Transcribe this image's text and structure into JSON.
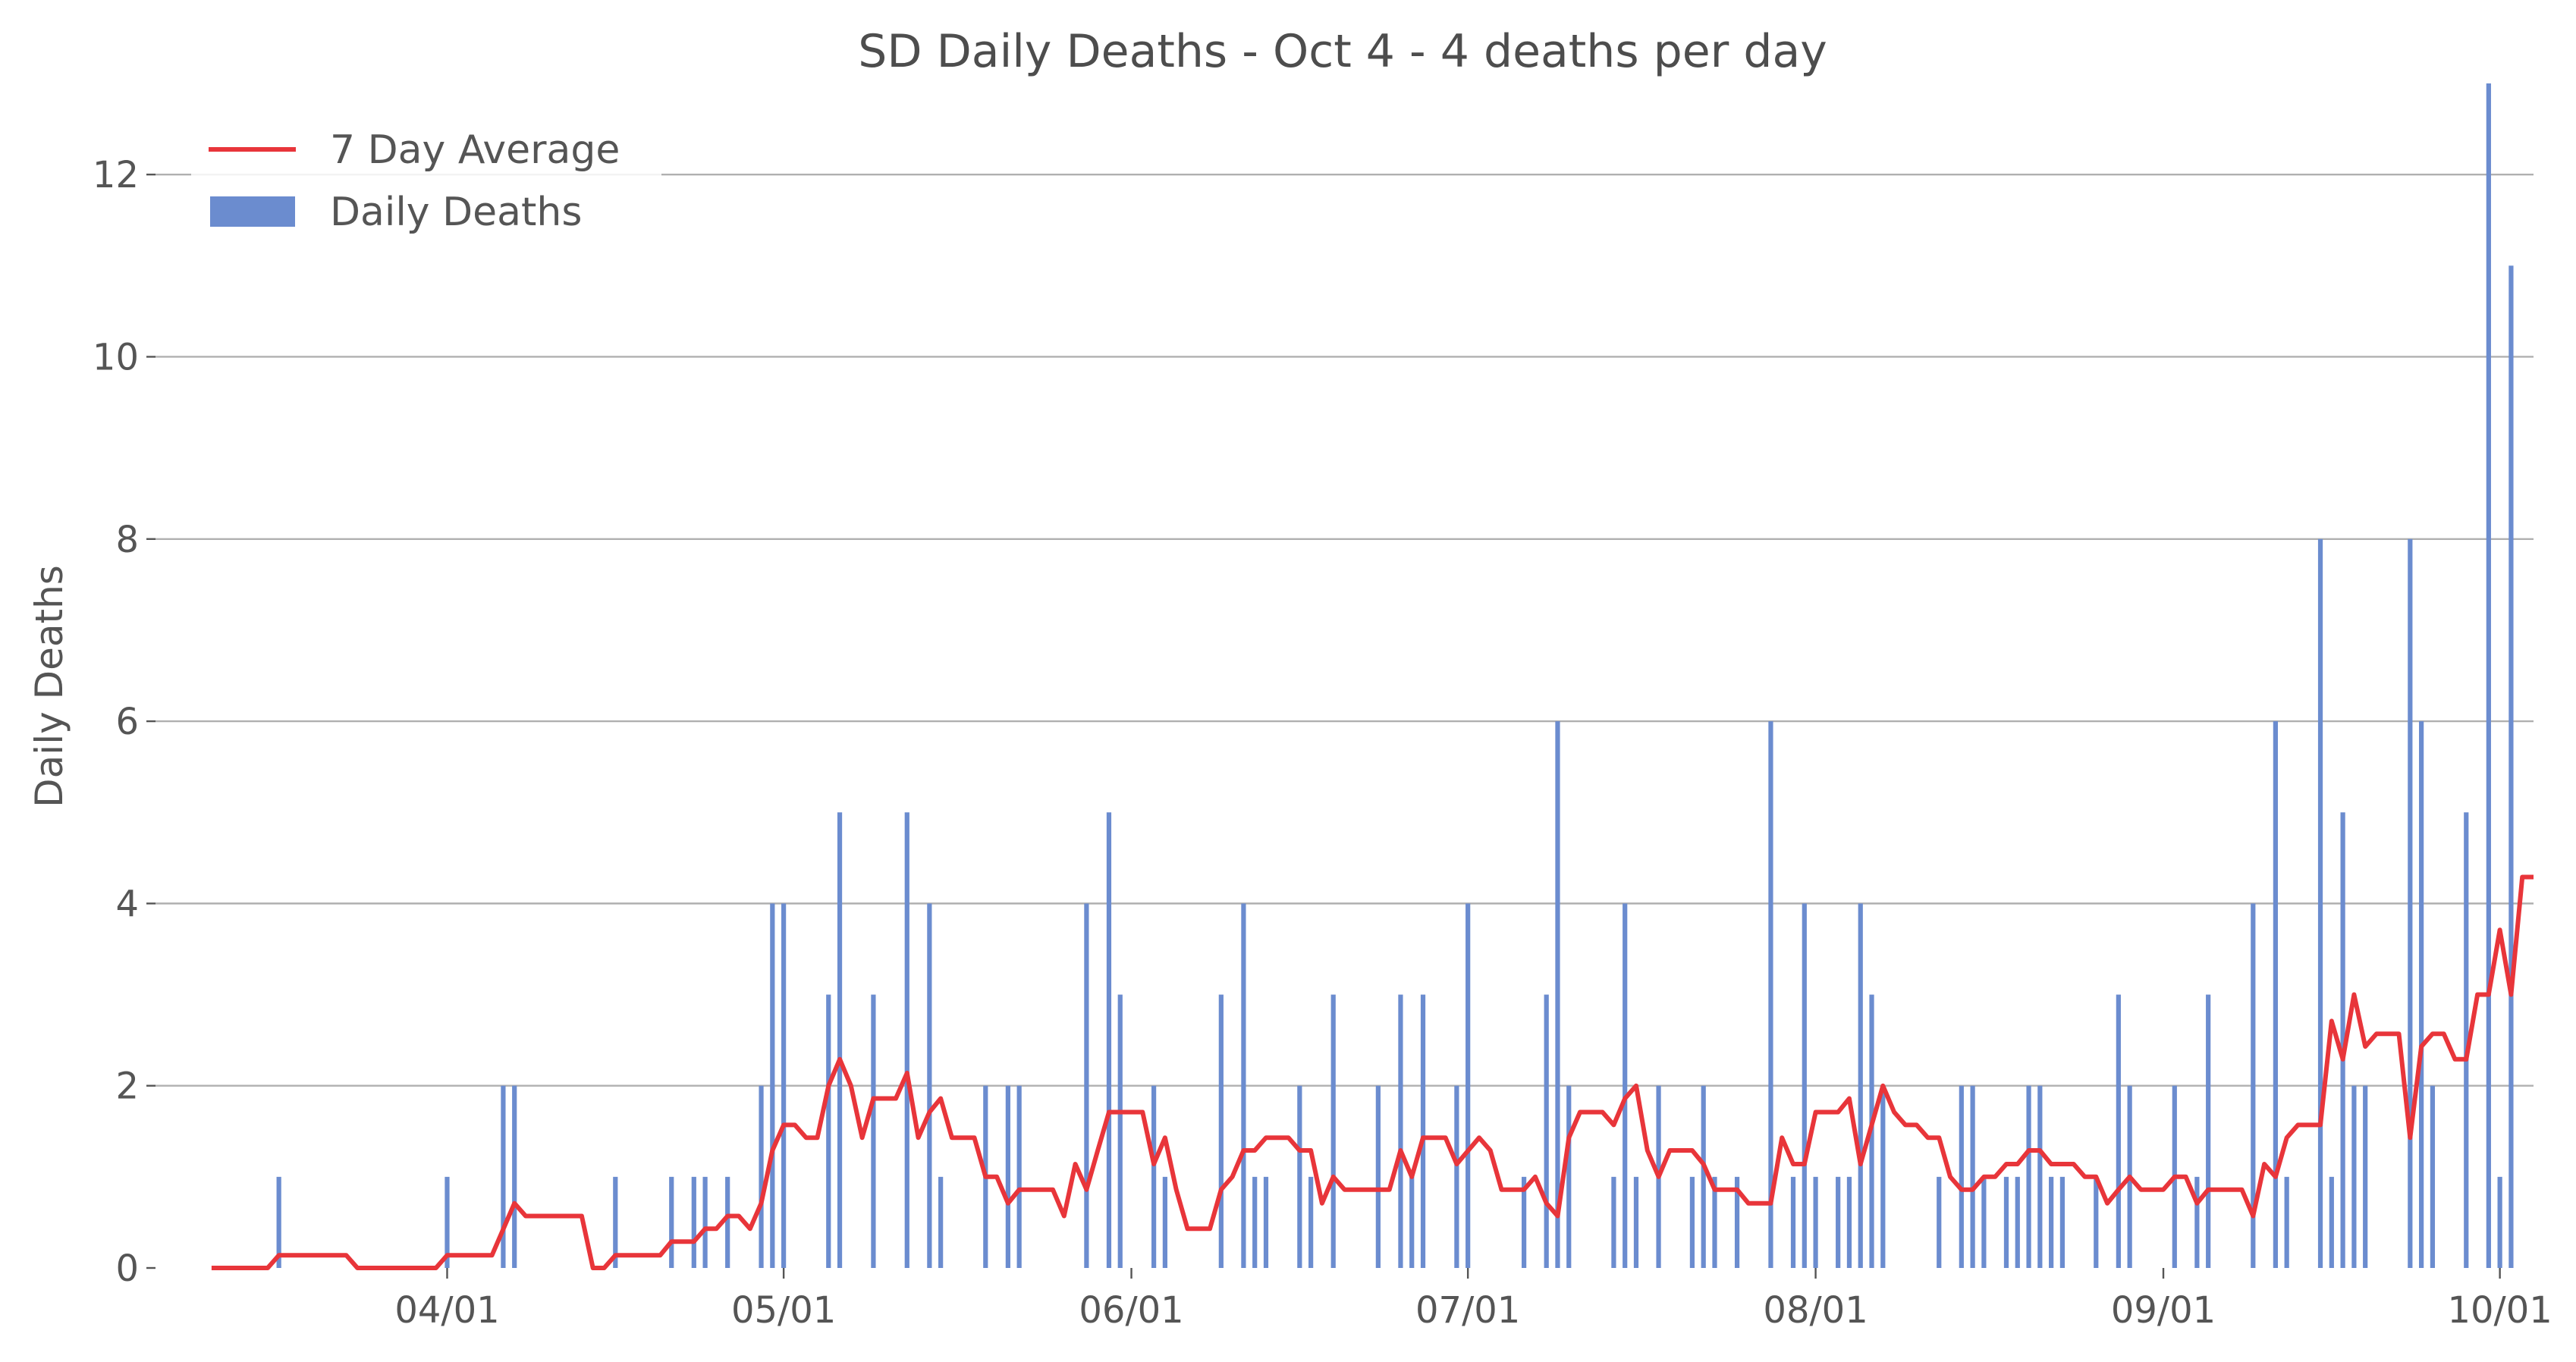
{
  "chart_data": {
    "type": "bar",
    "title": "SD Daily Deaths - Oct 4 - 4 deaths per day",
    "ylabel": "Daily Deaths",
    "xlabel": "",
    "ylim": [
      0,
      13
    ],
    "y_ticks": [
      0,
      2,
      4,
      6,
      8,
      10,
      12
    ],
    "x_ticks": [
      {
        "date": "2020-04-01",
        "label": "04/01"
      },
      {
        "date": "2020-05-01",
        "label": "05/01"
      },
      {
        "date": "2020-06-01",
        "label": "06/01"
      },
      {
        "date": "2020-07-01",
        "label": "07/01"
      },
      {
        "date": "2020-08-01",
        "label": "08/01"
      },
      {
        "date": "2020-09-01",
        "label": "09/01"
      },
      {
        "date": "2020-10-01",
        "label": "10/01"
      }
    ],
    "x_range": [
      "2020-03-06",
      "2020-10-04"
    ],
    "grid": "horizontal",
    "legend_position": "top-left",
    "colors": {
      "bars": "#6b8ccf",
      "line": "#e8353a",
      "grid": "#b0b0b0"
    },
    "series": [
      {
        "name": "Daily Deaths",
        "kind": "bar",
        "points": [
          [
            "2020-03-17",
            1
          ],
          [
            "2020-04-01",
            1
          ],
          [
            "2020-04-06",
            2
          ],
          [
            "2020-04-07",
            2
          ],
          [
            "2020-04-16",
            1
          ],
          [
            "2020-04-21",
            1
          ],
          [
            "2020-04-23",
            1
          ],
          [
            "2020-04-24",
            1
          ],
          [
            "2020-04-26",
            1
          ],
          [
            "2020-04-29",
            2
          ],
          [
            "2020-04-30",
            4
          ],
          [
            "2020-05-01",
            4
          ],
          [
            "2020-05-05",
            3
          ],
          [
            "2020-05-06",
            5
          ],
          [
            "2020-05-09",
            3
          ],
          [
            "2020-05-12",
            5
          ],
          [
            "2020-05-14",
            4
          ],
          [
            "2020-05-15",
            1
          ],
          [
            "2020-05-19",
            2
          ],
          [
            "2020-05-21",
            2
          ],
          [
            "2020-05-22",
            2
          ],
          [
            "2020-05-28",
            4
          ],
          [
            "2020-05-30",
            5
          ],
          [
            "2020-05-31",
            3
          ],
          [
            "2020-06-03",
            2
          ],
          [
            "2020-06-04",
            1
          ],
          [
            "2020-06-09",
            3
          ],
          [
            "2020-06-11",
            4
          ],
          [
            "2020-06-12",
            1
          ],
          [
            "2020-06-13",
            1
          ],
          [
            "2020-06-16",
            2
          ],
          [
            "2020-06-17",
            1
          ],
          [
            "2020-06-19",
            3
          ],
          [
            "2020-06-23",
            2
          ],
          [
            "2020-06-25",
            3
          ],
          [
            "2020-06-26",
            1
          ],
          [
            "2020-06-27",
            3
          ],
          [
            "2020-06-30",
            2
          ],
          [
            "2020-07-01",
            4
          ],
          [
            "2020-07-06",
            1
          ],
          [
            "2020-07-08",
            3
          ],
          [
            "2020-07-09",
            6
          ],
          [
            "2020-07-10",
            2
          ],
          [
            "2020-07-14",
            1
          ],
          [
            "2020-07-15",
            4
          ],
          [
            "2020-07-16",
            1
          ],
          [
            "2020-07-18",
            2
          ],
          [
            "2020-07-21",
            1
          ],
          [
            "2020-07-22",
            2
          ],
          [
            "2020-07-23",
            1
          ],
          [
            "2020-07-25",
            1
          ],
          [
            "2020-07-28",
            6
          ],
          [
            "2020-07-30",
            1
          ],
          [
            "2020-07-31",
            4
          ],
          [
            "2020-08-01",
            1
          ],
          [
            "2020-08-03",
            1
          ],
          [
            "2020-08-04",
            1
          ],
          [
            "2020-08-05",
            4
          ],
          [
            "2020-08-06",
            3
          ],
          [
            "2020-08-07",
            2
          ],
          [
            "2020-08-12",
            1
          ],
          [
            "2020-08-14",
            2
          ],
          [
            "2020-08-15",
            2
          ],
          [
            "2020-08-16",
            1
          ],
          [
            "2020-08-18",
            1
          ],
          [
            "2020-08-19",
            1
          ],
          [
            "2020-08-20",
            2
          ],
          [
            "2020-08-21",
            2
          ],
          [
            "2020-08-22",
            1
          ],
          [
            "2020-08-23",
            1
          ],
          [
            "2020-08-26",
            1
          ],
          [
            "2020-08-28",
            3
          ],
          [
            "2020-08-29",
            2
          ],
          [
            "2020-09-02",
            2
          ],
          [
            "2020-09-04",
            1
          ],
          [
            "2020-09-05",
            3
          ],
          [
            "2020-09-09",
            4
          ],
          [
            "2020-09-11",
            6
          ],
          [
            "2020-09-12",
            1
          ],
          [
            "2020-09-15",
            8
          ],
          [
            "2020-09-16",
            1
          ],
          [
            "2020-09-17",
            5
          ],
          [
            "2020-09-18",
            2
          ],
          [
            "2020-09-19",
            2
          ],
          [
            "2020-09-23",
            8
          ],
          [
            "2020-09-24",
            6
          ],
          [
            "2020-09-25",
            2
          ],
          [
            "2020-09-28",
            5
          ],
          [
            "2020-09-30",
            13
          ],
          [
            "2020-10-01",
            1
          ],
          [
            "2020-10-02",
            11
          ]
        ]
      },
      {
        "name": "7 Day Average",
        "kind": "line",
        "points": [
          [
            "2020-03-11",
            0
          ],
          [
            "2020-03-16",
            0
          ],
          [
            "2020-03-17",
            0.14
          ],
          [
            "2020-03-23",
            0.14
          ],
          [
            "2020-03-24",
            0
          ],
          [
            "2020-03-31",
            0
          ],
          [
            "2020-04-01",
            0.14
          ],
          [
            "2020-04-05",
            0.14
          ],
          [
            "2020-04-07",
            0.71
          ],
          [
            "2020-04-08",
            0.57
          ],
          [
            "2020-04-13",
            0.57
          ],
          [
            "2020-04-14",
            0
          ],
          [
            "2020-04-15",
            0
          ],
          [
            "2020-04-16",
            0.14
          ],
          [
            "2020-04-20",
            0.14
          ],
          [
            "2020-04-21",
            0.29
          ],
          [
            "2020-04-23",
            0.29
          ],
          [
            "2020-04-24",
            0.43
          ],
          [
            "2020-04-25",
            0.43
          ],
          [
            "2020-04-26",
            0.57
          ],
          [
            "2020-04-27",
            0.57
          ],
          [
            "2020-04-28",
            0.43
          ],
          [
            "2020-04-29",
            0.71
          ],
          [
            "2020-04-30",
            1.29
          ],
          [
            "2020-05-01",
            1.57
          ],
          [
            "2020-05-02",
            1.57
          ],
          [
            "2020-05-03",
            1.43
          ],
          [
            "2020-05-04",
            1.43
          ],
          [
            "2020-05-05",
            2.0
          ],
          [
            "2020-05-06",
            2.29
          ],
          [
            "2020-05-07",
            2.0
          ],
          [
            "2020-05-08",
            1.43
          ],
          [
            "2020-05-09",
            1.86
          ],
          [
            "2020-05-11",
            1.86
          ],
          [
            "2020-05-12",
            2.14
          ],
          [
            "2020-05-13",
            1.43
          ],
          [
            "2020-05-14",
            1.71
          ],
          [
            "2020-05-15",
            1.86
          ],
          [
            "2020-05-16",
            1.43
          ],
          [
            "2020-05-18",
            1.43
          ],
          [
            "2020-05-19",
            1.0
          ],
          [
            "2020-05-20",
            1.0
          ],
          [
            "2020-05-21",
            0.71
          ],
          [
            "2020-05-22",
            0.86
          ],
          [
            "2020-05-25",
            0.86
          ],
          [
            "2020-05-26",
            0.57
          ],
          [
            "2020-05-27",
            1.14
          ],
          [
            "2020-05-28",
            0.86
          ],
          [
            "2020-05-29",
            1.29
          ],
          [
            "2020-05-30",
            1.71
          ],
          [
            "2020-06-02",
            1.71
          ],
          [
            "2020-06-03",
            1.14
          ],
          [
            "2020-06-04",
            1.43
          ],
          [
            "2020-06-05",
            0.86
          ],
          [
            "2020-06-06",
            0.43
          ],
          [
            "2020-06-08",
            0.43
          ],
          [
            "2020-06-09",
            0.86
          ],
          [
            "2020-06-10",
            1.0
          ],
          [
            "2020-06-11",
            1.29
          ],
          [
            "2020-06-12",
            1.29
          ],
          [
            "2020-06-13",
            1.43
          ],
          [
            "2020-06-15",
            1.43
          ],
          [
            "2020-06-16",
            1.29
          ],
          [
            "2020-06-17",
            1.29
          ],
          [
            "2020-06-18",
            0.71
          ],
          [
            "2020-06-19",
            1.0
          ],
          [
            "2020-06-20",
            0.86
          ],
          [
            "2020-06-24",
            0.86
          ],
          [
            "2020-06-25",
            1.29
          ],
          [
            "2020-06-26",
            1.0
          ],
          [
            "2020-06-27",
            1.43
          ],
          [
            "2020-06-29",
            1.43
          ],
          [
            "2020-06-30",
            1.14
          ],
          [
            "2020-07-02",
            1.43
          ],
          [
            "2020-07-03",
            1.29
          ],
          [
            "2020-07-04",
            0.86
          ],
          [
            "2020-07-06",
            0.86
          ],
          [
            "2020-07-07",
            1.0
          ],
          [
            "2020-07-08",
            0.71
          ],
          [
            "2020-07-09",
            0.57
          ],
          [
            "2020-07-10",
            1.43
          ],
          [
            "2020-07-11",
            1.71
          ],
          [
            "2020-07-13",
            1.71
          ],
          [
            "2020-07-14",
            1.57
          ],
          [
            "2020-07-15",
            1.86
          ],
          [
            "2020-07-16",
            2.0
          ],
          [
            "2020-07-17",
            1.29
          ],
          [
            "2020-07-18",
            1.0
          ],
          [
            "2020-07-19",
            1.29
          ],
          [
            "2020-07-21",
            1.29
          ],
          [
            "2020-07-22",
            1.14
          ],
          [
            "2020-07-23",
            0.86
          ],
          [
            "2020-07-25",
            0.86
          ],
          [
            "2020-07-26",
            0.71
          ],
          [
            "2020-07-28",
            0.71
          ],
          [
            "2020-07-29",
            1.43
          ],
          [
            "2020-07-30",
            1.14
          ],
          [
            "2020-07-31",
            1.14
          ],
          [
            "2020-08-01",
            1.71
          ],
          [
            "2020-08-03",
            1.71
          ],
          [
            "2020-08-04",
            1.86
          ],
          [
            "2020-08-05",
            1.14
          ],
          [
            "2020-08-06",
            1.57
          ],
          [
            "2020-08-07",
            2.0
          ],
          [
            "2020-08-08",
            1.71
          ],
          [
            "2020-08-09",
            1.57
          ],
          [
            "2020-08-10",
            1.57
          ],
          [
            "2020-08-11",
            1.43
          ],
          [
            "2020-08-12",
            1.43
          ],
          [
            "2020-08-13",
            1.0
          ],
          [
            "2020-08-14",
            0.86
          ],
          [
            "2020-08-15",
            0.86
          ],
          [
            "2020-08-16",
            1.0
          ],
          [
            "2020-08-17",
            1.0
          ],
          [
            "2020-08-18",
            1.14
          ],
          [
            "2020-08-19",
            1.14
          ],
          [
            "2020-08-20",
            1.29
          ],
          [
            "2020-08-21",
            1.29
          ],
          [
            "2020-08-22",
            1.14
          ],
          [
            "2020-08-24",
            1.14
          ],
          [
            "2020-08-25",
            1.0
          ],
          [
            "2020-08-26",
            1.0
          ],
          [
            "2020-08-27",
            0.71
          ],
          [
            "2020-08-28",
            0.86
          ],
          [
            "2020-08-29",
            1.0
          ],
          [
            "2020-08-30",
            0.86
          ],
          [
            "2020-09-01",
            0.86
          ],
          [
            "2020-09-02",
            1.0
          ],
          [
            "2020-09-03",
            1.0
          ],
          [
            "2020-09-04",
            0.71
          ],
          [
            "2020-09-05",
            0.86
          ],
          [
            "2020-09-08",
            0.86
          ],
          [
            "2020-09-09",
            0.57
          ],
          [
            "2020-09-10",
            1.14
          ],
          [
            "2020-09-11",
            1.0
          ],
          [
            "2020-09-12",
            1.43
          ],
          [
            "2020-09-13",
            1.57
          ],
          [
            "2020-09-15",
            1.57
          ],
          [
            "2020-09-16",
            2.71
          ],
          [
            "2020-09-17",
            2.29
          ],
          [
            "2020-09-18",
            3.0
          ],
          [
            "2020-09-19",
            2.43
          ],
          [
            "2020-09-20",
            2.57
          ],
          [
            "2020-09-22",
            2.57
          ],
          [
            "2020-09-23",
            1.43
          ],
          [
            "2020-09-24",
            2.43
          ],
          [
            "2020-09-25",
            2.57
          ],
          [
            "2020-09-26",
            2.57
          ],
          [
            "2020-09-27",
            2.29
          ],
          [
            "2020-09-28",
            2.29
          ],
          [
            "2020-09-29",
            3.0
          ],
          [
            "2020-09-30",
            3.0
          ],
          [
            "2020-10-01",
            3.71
          ],
          [
            "2020-10-02",
            3.0
          ],
          [
            "2020-10-03",
            4.29
          ],
          [
            "2020-10-04",
            4.29
          ]
        ]
      }
    ]
  }
}
